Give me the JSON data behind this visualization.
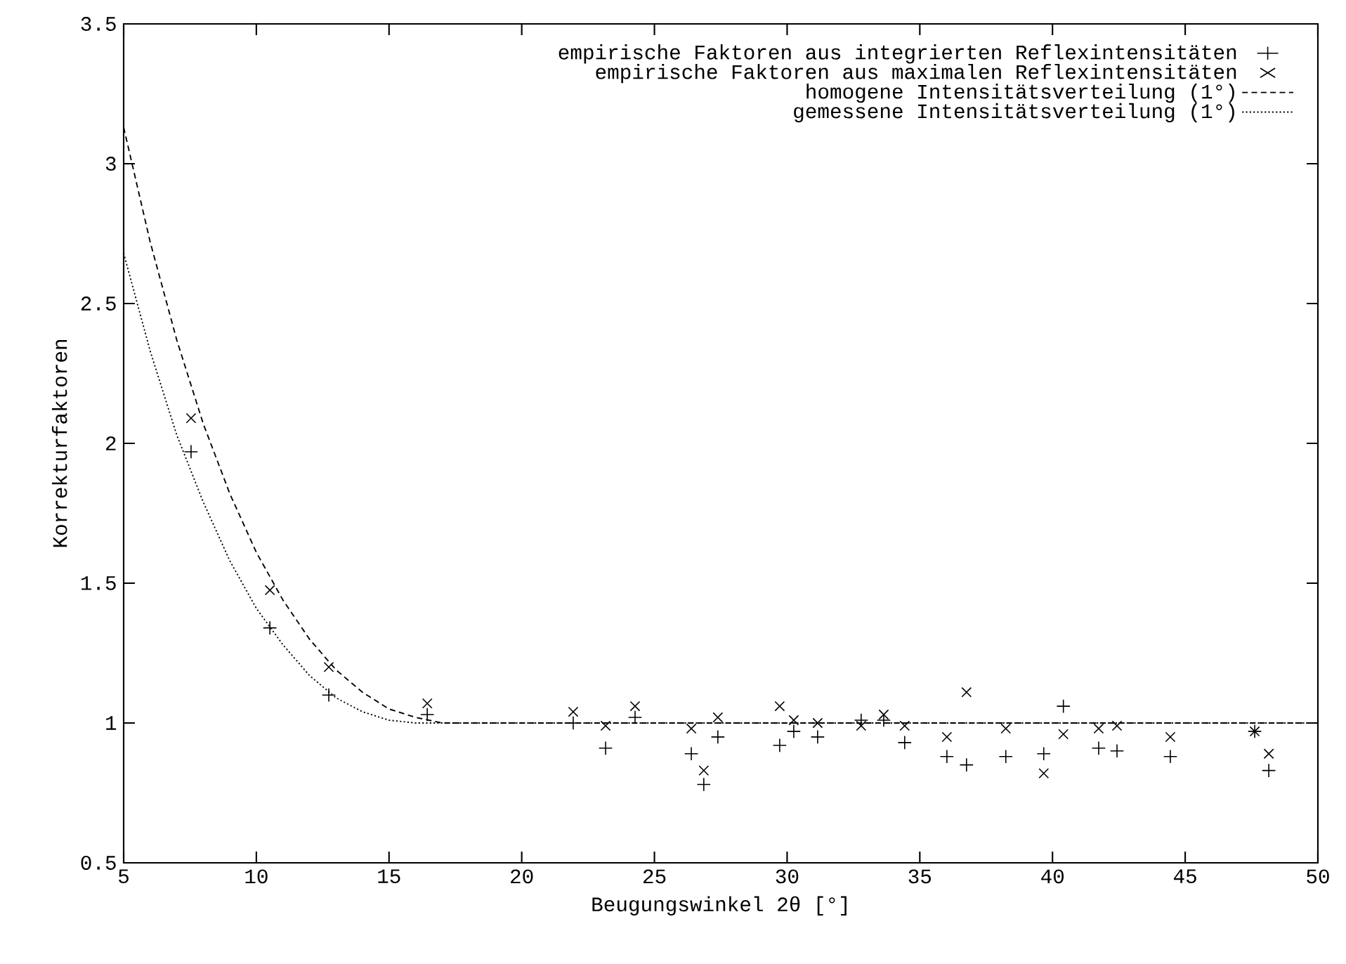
{
  "chart_data": {
    "type": "scatter",
    "xlabel": "Beugungswinkel 2θ [°]",
    "ylabel": "Korrekturfaktoren",
    "xlim": [
      5,
      50
    ],
    "ylim": [
      0.5,
      3.5
    ],
    "xticks": [
      5,
      10,
      15,
      20,
      25,
      30,
      35,
      40,
      45,
      50
    ],
    "yticks": [
      0.5,
      1,
      1.5,
      2,
      2.5,
      3,
      3.5
    ],
    "legend": "top right",
    "grid": false,
    "series": [
      {
        "name": "empirische Faktoren aus integrierten Reflexintensitäten",
        "marker": "plus",
        "color": "#000000",
        "x": [
          7.54,
          10.51,
          12.73,
          16.44,
          21.94,
          23.16,
          24.27,
          26.39,
          26.86,
          27.39,
          29.72,
          30.25,
          31.15,
          32.79,
          33.64,
          34.43,
          36.02,
          36.76,
          38.24,
          39.67,
          40.41,
          41.74,
          42.43,
          44.44,
          47.62,
          48.15
        ],
        "values": [
          1.97,
          1.34,
          1.1,
          1.03,
          1.0,
          0.91,
          1.02,
          0.89,
          0.78,
          0.95,
          0.92,
          0.97,
          0.95,
          1.01,
          1.01,
          0.93,
          0.88,
          0.85,
          0.88,
          0.89,
          1.06,
          0.91,
          0.9,
          0.88,
          0.97,
          0.83
        ]
      },
      {
        "name": "empirische Faktoren aus maximalen Reflexintensitäten",
        "marker": "cross",
        "color": "#000000",
        "x": [
          7.54,
          10.51,
          12.73,
          16.44,
          21.94,
          23.16,
          24.27,
          26.39,
          26.86,
          27.39,
          29.72,
          30.25,
          31.15,
          32.79,
          33.64,
          34.43,
          36.02,
          36.76,
          38.24,
          39.67,
          40.41,
          41.74,
          42.43,
          44.44,
          47.62,
          48.15
        ],
        "values": [
          2.09,
          1.475,
          1.2,
          1.07,
          1.04,
          0.99,
          1.06,
          0.98,
          0.83,
          1.02,
          1.06,
          1.01,
          1.0,
          0.99,
          1.03,
          0.99,
          0.95,
          1.11,
          0.98,
          0.82,
          0.96,
          0.98,
          0.99,
          0.95,
          0.97,
          0.89
        ]
      },
      {
        "name": "homogene Intensitätsverteilung (1°)",
        "type": "line",
        "marker": "none",
        "line_style": "dashed",
        "color": "#000000",
        "x": [
          5,
          6,
          7,
          8,
          9,
          10,
          11,
          12,
          13,
          14,
          15,
          16,
          17,
          50
        ],
        "values": [
          3.13,
          2.72,
          2.37,
          2.07,
          1.82,
          1.61,
          1.44,
          1.3,
          1.19,
          1.11,
          1.05,
          1.02,
          1.0,
          1.0
        ]
      },
      {
        "name": "gemessene Intensitätsverteilung (1°)",
        "type": "line",
        "marker": "none",
        "line_style": "dotted",
        "color": "#000000",
        "x": [
          5,
          6,
          7,
          8,
          9,
          10,
          11,
          12,
          13,
          14,
          15,
          16,
          50
        ],
        "values": [
          2.68,
          2.33,
          2.03,
          1.79,
          1.58,
          1.41,
          1.28,
          1.17,
          1.09,
          1.04,
          1.01,
          1.0,
          1.0
        ]
      }
    ]
  }
}
